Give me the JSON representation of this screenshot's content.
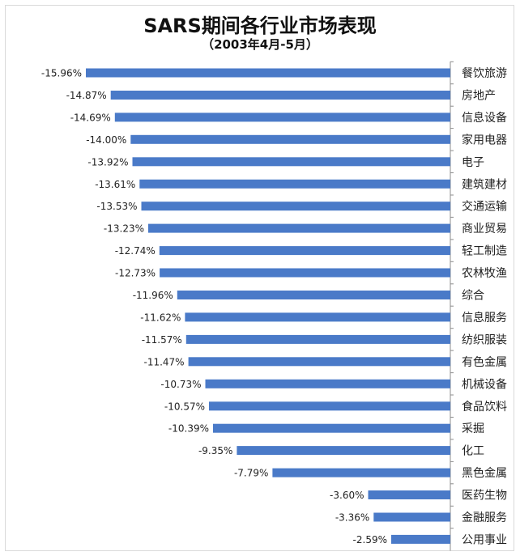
{
  "chart_data": {
    "type": "bar",
    "orientation": "horizontal",
    "title": "SARS期间各行业市场表现",
    "subtitle": "（2003年4月-5月）",
    "categories": [
      "餐饮旅游",
      "房地产",
      "信息设备",
      "家用电器",
      "电子",
      "建筑建材",
      "交通运输",
      "商业贸易",
      "轻工制造",
      "农林牧渔",
      "综合",
      "信息服务",
      "纺织服装",
      "有色金属",
      "机械设备",
      "食品饮料",
      "采掘",
      "化工",
      "黑色金属",
      "医药生物",
      "金融服务",
      "公用事业"
    ],
    "values": [
      -15.96,
      -14.87,
      -14.69,
      -14.0,
      -13.92,
      -13.61,
      -13.53,
      -13.23,
      -12.74,
      -12.73,
      -11.96,
      -11.62,
      -11.57,
      -11.47,
      -10.73,
      -10.57,
      -10.39,
      -9.35,
      -7.79,
      -3.6,
      -3.36,
      -2.59
    ],
    "value_labels": [
      "-15.96%",
      "-14.87%",
      "-14.69%",
      "-14.00%",
      "-13.92%",
      "-13.61%",
      "-13.53%",
      "-13.23%",
      "-12.74%",
      "-12.73%",
      "-11.96%",
      "-11.62%",
      "-11.57%",
      "-11.47%",
      "-10.73%",
      "-10.57%",
      "-10.39%",
      "-9.35%",
      "-7.79%",
      "-3.60%",
      "-3.36%",
      "-2.59%"
    ],
    "unit": "%",
    "xlim": [
      -15.96,
      0
    ],
    "grid": false,
    "legend": "none",
    "bar_color": "#4a7ac8"
  }
}
